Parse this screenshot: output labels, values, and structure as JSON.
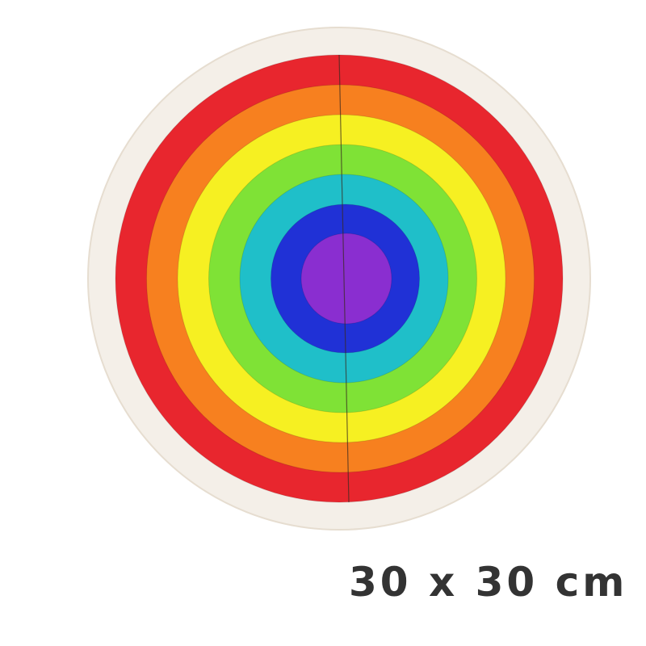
{
  "product": {
    "size_label": "30 x 30 cm",
    "ring_colors": [
      "#e8262e",
      "#f7801f",
      "#f6f022",
      "#7fe236",
      "#1fbfc9",
      "#2031d6",
      "#8a2ed0"
    ],
    "base_color": "#f4efe8"
  }
}
